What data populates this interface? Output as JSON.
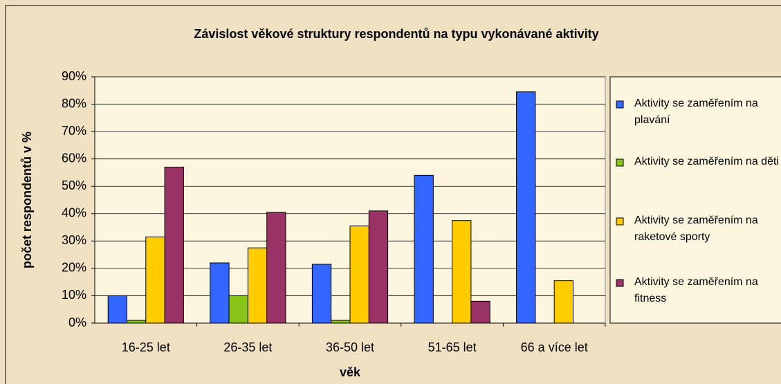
{
  "chart_data": {
    "type": "bar",
    "title": "Závislost věkové struktury respondentů na typu vykonávané aktivity",
    "x_label": "věk",
    "y_label": "počet respondentů v %",
    "categories": [
      "16-25 let",
      "26-35 let",
      "36-50 let",
      "51-65 let",
      "66 a více let"
    ],
    "series": [
      {
        "name": "Aktivity se zaměřením na plavání",
        "color": "#3366ff",
        "values": [
          10,
          22,
          21.5,
          54,
          84.5
        ]
      },
      {
        "name": "Aktivity se zaměřením na děti",
        "color": "#88c418",
        "values": [
          1,
          10,
          1,
          0,
          0
        ]
      },
      {
        "name": "Aktivity se zaměřením na raketové sporty",
        "color": "#ffcc00",
        "values": [
          31.5,
          27.5,
          35.5,
          37.5,
          15.5
        ]
      },
      {
        "name": "Aktivity se zaměřením na fitness",
        "color": "#993366",
        "values": [
          57,
          40.5,
          41,
          8,
          0
        ]
      }
    ],
    "ylim": [
      0,
      90
    ],
    "yticks": [
      {
        "value": 0,
        "label": "0%"
      },
      {
        "value": 10,
        "label": "10%"
      },
      {
        "value": 20,
        "label": "20%"
      },
      {
        "value": 30,
        "label": "30%"
      },
      {
        "value": 40,
        "label": "40%"
      },
      {
        "value": 50,
        "label": "50%"
      },
      {
        "value": 60,
        "label": "60%"
      },
      {
        "value": 70,
        "label": "70%"
      },
      {
        "value": 80,
        "label": "80%"
      },
      {
        "value": 90,
        "label": "90%"
      }
    ],
    "grid": true,
    "legend_position": "right"
  }
}
